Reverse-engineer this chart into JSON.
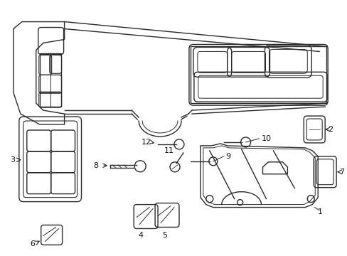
{
  "bg_color": "#ffffff",
  "line_color": "#2a2a2a",
  "text_color": "#111111",
  "lw": 1.0,
  "fig_w": 4.89,
  "fig_h": 3.6,
  "dpi": 100
}
